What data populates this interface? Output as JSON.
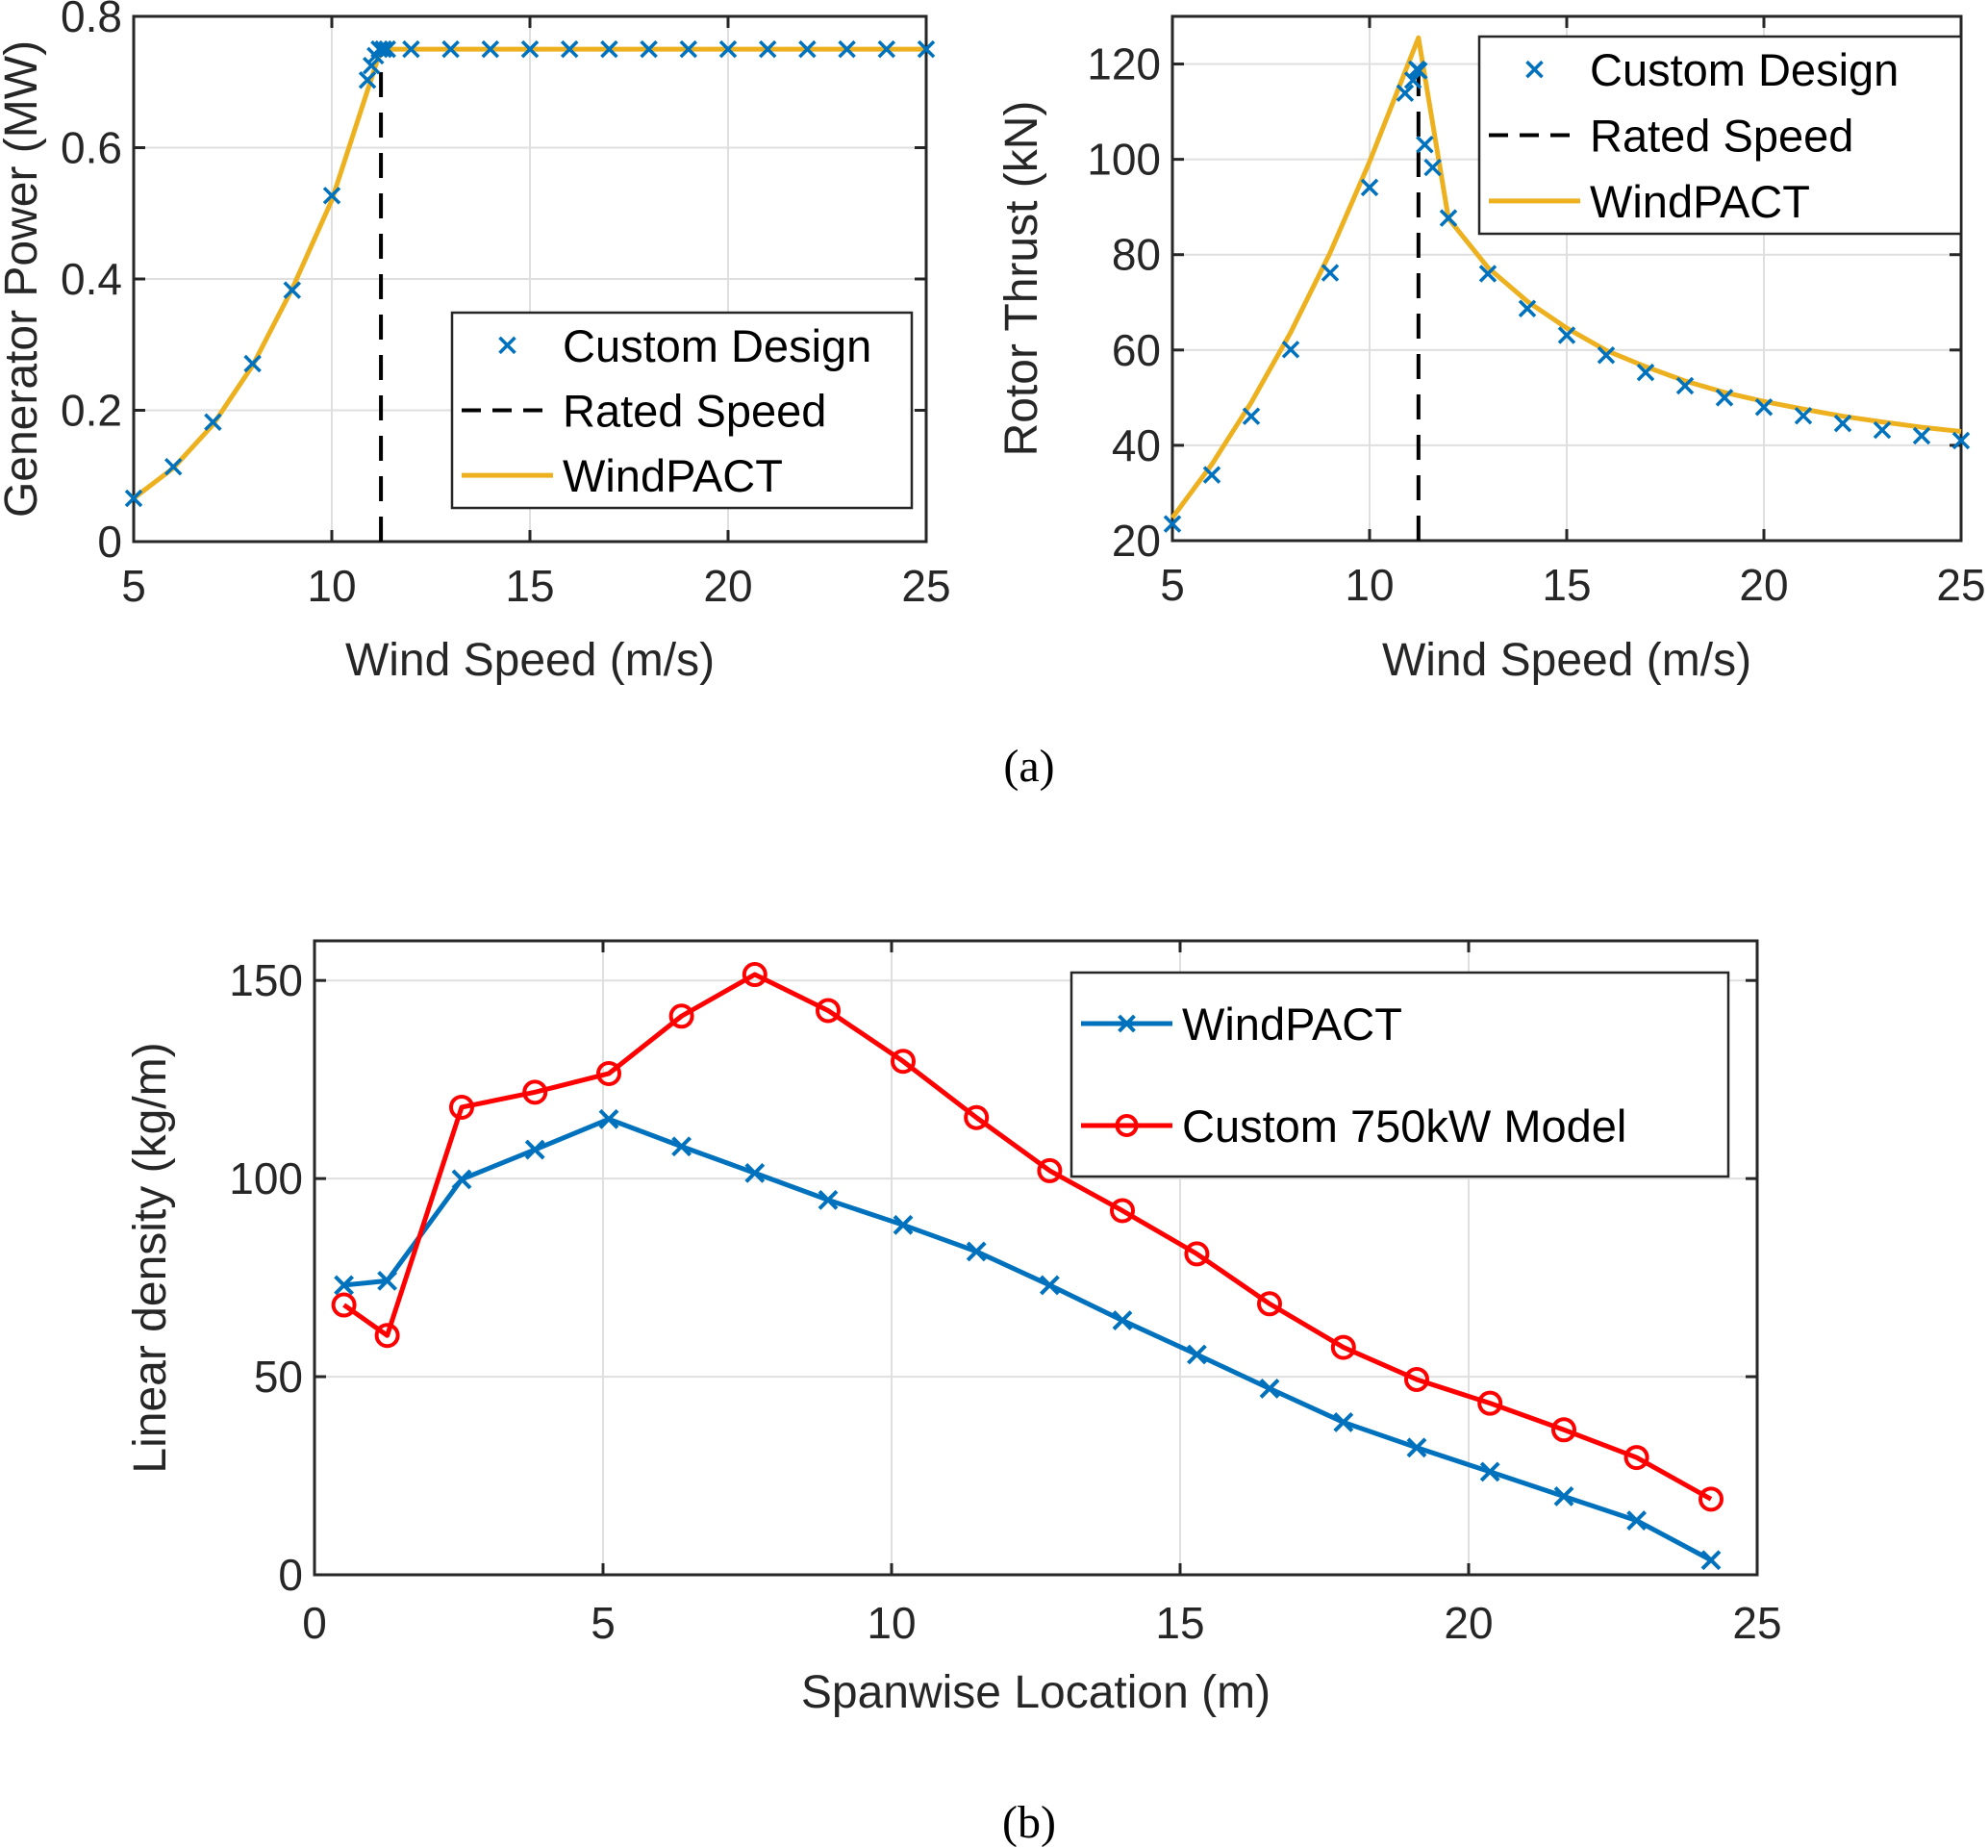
{
  "captions": {
    "a": "(a)",
    "b": "(b)"
  },
  "colors": {
    "custom_marker": "#0072BD",
    "windpact_yellow": "#EDB120",
    "rated_line": "#000000",
    "windpact_blue": "#0072BD",
    "custom_red": "#FF0000"
  },
  "chart_data": [
    {
      "id": "power",
      "type": "line",
      "title": "",
      "xlabel": "Wind Speed (m/s)",
      "ylabel": "Generator Power (MW)",
      "xlim": [
        5,
        25
      ],
      "ylim": [
        0,
        0.8
      ],
      "xticks": [
        5,
        10,
        15,
        20,
        25
      ],
      "xtick_labels": [
        "5",
        "10",
        "15",
        "20",
        "25"
      ],
      "yticks": [
        0,
        0.2,
        0.4,
        0.6,
        0.8
      ],
      "ytick_labels": [
        "0",
        "0.2",
        "0.4",
        "0.6",
        "0.8"
      ],
      "grid": true,
      "legend": {
        "position": "bottom-right",
        "entries": [
          "Custom Design",
          "Rated Speed",
          "WindPACT"
        ]
      },
      "series": [
        {
          "name": "Custom Design",
          "style": "markers-x",
          "x": [
            5,
            6,
            7,
            8,
            9,
            10,
            10.9,
            11.0,
            11.1,
            11.2,
            11.3,
            11.4,
            12,
            13,
            14,
            15,
            16,
            17,
            18,
            19,
            20,
            21,
            22,
            23,
            24,
            25
          ],
          "y": [
            0.066,
            0.114,
            0.182,
            0.271,
            0.383,
            0.527,
            0.703,
            0.725,
            0.74,
            0.75,
            0.75,
            0.75,
            0.75,
            0.75,
            0.75,
            0.75,
            0.75,
            0.75,
            0.75,
            0.75,
            0.75,
            0.75,
            0.75,
            0.75,
            0.75,
            0.75
          ]
        },
        {
          "name": "Rated Speed",
          "style": "dashed",
          "x": [
            11.24,
            11.24
          ],
          "y": [
            0,
            0.75
          ]
        },
        {
          "name": "WindPACT",
          "style": "line",
          "x": [
            5,
            6,
            7,
            8,
            9,
            10,
            11.24,
            12,
            25
          ],
          "y": [
            0.066,
            0.112,
            0.178,
            0.268,
            0.385,
            0.52,
            0.75,
            0.75,
            0.75
          ]
        }
      ]
    },
    {
      "id": "thrust",
      "type": "line",
      "title": "",
      "xlabel": "Wind Speed (m/s)",
      "ylabel": "Rotor Thrust (kN)",
      "xlim": [
        5,
        25
      ],
      "ylim": [
        20,
        130
      ],
      "xticks": [
        5,
        10,
        15,
        20,
        25
      ],
      "xtick_labels": [
        "5",
        "10",
        "15",
        "20",
        "25"
      ],
      "yticks": [
        20,
        40,
        60,
        80,
        100,
        120
      ],
      "ytick_labels": [
        "20",
        "40",
        "60",
        "80",
        "100",
        "120"
      ],
      "grid": true,
      "legend": {
        "position": "top-right",
        "entries": [
          "Custom Design",
          "Rated Speed",
          "WindPACT"
        ]
      },
      "series": [
        {
          "name": "Custom Design",
          "style": "markers-x",
          "x": [
            5,
            6,
            7,
            8,
            9,
            10,
            10.9,
            11.1,
            11.2,
            11.25,
            11.4,
            11.6,
            12,
            13,
            14,
            15,
            16,
            17,
            18,
            19,
            20,
            21,
            22,
            23,
            24,
            25
          ],
          "y": [
            23.5,
            33.8,
            46.1,
            60.1,
            76.2,
            94.1,
            113.9,
            116.6,
            118.9,
            118.6,
            103.1,
            98.3,
            87.7,
            76.0,
            68.7,
            63.1,
            58.9,
            55.3,
            52.5,
            50.0,
            48.0,
            46.2,
            44.6,
            43.2,
            42.0,
            41.0
          ]
        },
        {
          "name": "Rated Speed",
          "style": "dashed",
          "x": [
            11.24,
            11.24
          ],
          "y": [
            20,
            119
          ]
        },
        {
          "name": "WindPACT",
          "style": "line",
          "x": [
            5,
            6,
            7,
            8,
            9,
            10,
            11.24,
            12,
            13,
            14,
            15,
            16,
            17,
            18,
            19,
            20,
            21,
            22,
            23,
            24,
            25
          ],
          "y": [
            24.8,
            36.0,
            49.0,
            63.7,
            80.4,
            99.5,
            125.5,
            87.6,
            77.3,
            70.2,
            64.6,
            59.9,
            56.5,
            53.5,
            51.1,
            49.2,
            47.6,
            46.1,
            44.9,
            43.8,
            42.9
          ]
        }
      ]
    },
    {
      "id": "density",
      "type": "line",
      "title": "",
      "xlabel": "Spanwise Location (m)",
      "ylabel": "Linear density (kg/m)",
      "xlim": [
        0,
        25
      ],
      "ylim": [
        0,
        160
      ],
      "xticks": [
        0,
        5,
        10,
        15,
        20,
        25
      ],
      "xtick_labels": [
        "0",
        "5",
        "10",
        "15",
        "20",
        "25"
      ],
      "yticks": [
        0,
        50,
        100,
        150
      ],
      "ytick_labels": [
        "0",
        "50",
        "100",
        "150"
      ],
      "grid": true,
      "legend": {
        "position": "top-right",
        "entries": [
          "WindPACT",
          "Custom 750kW Model"
        ]
      },
      "series": [
        {
          "name": "WindPACT",
          "style": "line-x",
          "x": [
            0.51,
            1.26,
            2.55,
            3.82,
            5.1,
            6.36,
            7.63,
            8.9,
            10.2,
            11.47,
            12.74,
            14.0,
            15.29,
            16.55,
            17.83,
            19.1,
            20.37,
            21.65,
            22.91,
            24.2
          ],
          "y": [
            73.1,
            74.2,
            99.8,
            107.3,
            115.0,
            108.1,
            101.4,
            94.6,
            88.3,
            81.6,
            73.1,
            64.2,
            55.6,
            47.0,
            38.5,
            32.1,
            26.0,
            19.8,
            13.7,
            3.7
          ]
        },
        {
          "name": "Custom 750kW Model",
          "style": "line-o",
          "x": [
            0.51,
            1.26,
            2.55,
            3.82,
            5.1,
            6.36,
            7.63,
            8.9,
            10.2,
            11.47,
            12.74,
            14.0,
            15.29,
            16.55,
            17.83,
            19.1,
            20.37,
            21.65,
            22.91,
            24.2
          ],
          "y": [
            68.1,
            60.4,
            118.0,
            121.8,
            126.5,
            141.0,
            151.5,
            142.4,
            129.6,
            115.4,
            102.0,
            91.9,
            81.0,
            68.4,
            57.4,
            49.3,
            43.3,
            36.6,
            29.6,
            19.1
          ]
        }
      ]
    }
  ]
}
